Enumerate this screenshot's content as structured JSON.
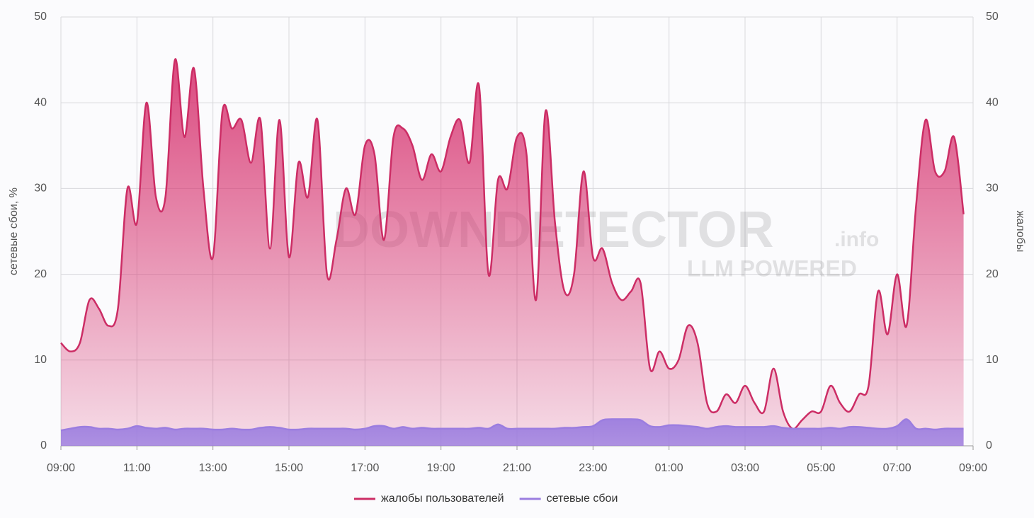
{
  "chart_data": {
    "type": "area",
    "y_label": "сетевые сбои, %",
    "y2_label": "жалобы",
    "watermark": [
      "DOWNDETECTOR",
      ".info",
      "LLM POWERED"
    ],
    "grid": true,
    "legend": "bottom",
    "xlim": [
      0,
      24
    ],
    "xticks": [
      {
        "value": 0,
        "label": "09:00"
      },
      {
        "value": 2,
        "label": "11:00"
      },
      {
        "value": 4,
        "label": "13:00"
      },
      {
        "value": 6,
        "label": "15:00"
      },
      {
        "value": 8,
        "label": "17:00"
      },
      {
        "value": 10,
        "label": "19:00"
      },
      {
        "value": 12,
        "label": "21:00"
      },
      {
        "value": 14,
        "label": "23:00"
      },
      {
        "value": 16,
        "label": "01:00"
      },
      {
        "value": 18,
        "label": "03:00"
      },
      {
        "value": 20,
        "label": "05:00"
      },
      {
        "value": 22,
        "label": "07:00"
      },
      {
        "value": 24,
        "label": "09:00"
      }
    ],
    "ylim": [
      0,
      50
    ],
    "yticks": [
      0,
      10,
      20,
      30,
      40,
      50
    ],
    "y2lim": [
      0,
      50
    ],
    "y2ticks": [
      0,
      10,
      20,
      30,
      40,
      50
    ],
    "x": [
      0,
      0.25,
      0.5,
      0.75,
      1,
      1.25,
      1.5,
      1.75,
      2,
      2.25,
      2.5,
      2.75,
      3,
      3.25,
      3.5,
      3.75,
      4,
      4.25,
      4.5,
      4.75,
      5,
      5.25,
      5.5,
      5.75,
      6,
      6.25,
      6.5,
      6.75,
      7,
      7.25,
      7.5,
      7.75,
      8,
      8.25,
      8.5,
      8.75,
      9,
      9.25,
      9.5,
      9.75,
      10,
      10.25,
      10.5,
      10.75,
      11,
      11.25,
      11.5,
      11.75,
      12,
      12.25,
      12.5,
      12.75,
      13,
      13.25,
      13.5,
      13.75,
      14,
      14.25,
      14.5,
      14.75,
      15,
      15.25,
      15.5,
      15.75,
      16,
      16.25,
      16.5,
      16.75,
      17,
      17.25,
      17.5,
      17.75,
      18,
      18.25,
      18.5,
      18.75,
      19,
      19.25,
      19.5,
      19.75,
      20,
      20.25,
      20.5,
      20.75,
      21,
      21.25,
      21.5,
      21.75,
      22,
      22.25,
      22.5,
      22.75,
      23,
      23.25,
      23.5,
      23.75
    ],
    "series": [
      {
        "name": "жалобы пользователей",
        "color": "#cc2d65",
        "axis": "y2",
        "values": [
          12,
          11,
          12,
          17,
          16,
          14,
          16,
          30,
          26,
          40,
          29,
          29,
          45,
          36,
          44,
          30,
          22,
          39,
          37,
          38,
          33,
          38,
          23,
          38,
          22,
          33,
          29,
          38,
          20,
          24,
          30,
          27,
          35,
          34,
          24,
          36,
          37,
          35,
          31,
          34,
          32,
          36,
          38,
          33,
          42,
          20,
          31,
          30,
          36,
          34,
          17,
          39,
          26,
          18,
          20,
          32,
          22,
          23,
          19,
          17,
          18,
          19,
          9,
          11,
          9,
          10,
          14,
          12,
          5,
          4,
          6,
          5,
          7,
          5,
          4,
          9,
          4,
          2,
          3,
          4,
          4,
          7,
          5,
          4,
          6,
          7,
          18,
          13,
          20,
          14,
          28,
          38,
          32,
          32,
          36,
          27
        ]
      },
      {
        "name": "сетевые сбои",
        "color": "#9b7de0",
        "axis": "y",
        "values": [
          1.8,
          2,
          2.2,
          2.2,
          2,
          2,
          1.9,
          2,
          2.3,
          2.1,
          2,
          2.1,
          1.9,
          2,
          2,
          2,
          1.9,
          1.9,
          2,
          1.9,
          1.9,
          2.1,
          2.2,
          2.1,
          1.9,
          1.9,
          2,
          2,
          2,
          2,
          2,
          1.9,
          2,
          2.3,
          2.3,
          2,
          2.2,
          2,
          2.1,
          2,
          2,
          2,
          2,
          2,
          2.1,
          2,
          2.5,
          2,
          2,
          2,
          2,
          2,
          2,
          2.1,
          2.1,
          2.2,
          2.3,
          3,
          3.1,
          3.1,
          3.1,
          3,
          2.3,
          2.2,
          2.4,
          2.4,
          2.3,
          2.2,
          2,
          2.2,
          2.3,
          2.2,
          2.2,
          2.2,
          2.2,
          2.3,
          2.1,
          2,
          2,
          2,
          2,
          2.1,
          2,
          2.2,
          2.2,
          2.1,
          2,
          2,
          2.3,
          3.1,
          2,
          2,
          1.9,
          2,
          2,
          2
        ]
      }
    ]
  }
}
